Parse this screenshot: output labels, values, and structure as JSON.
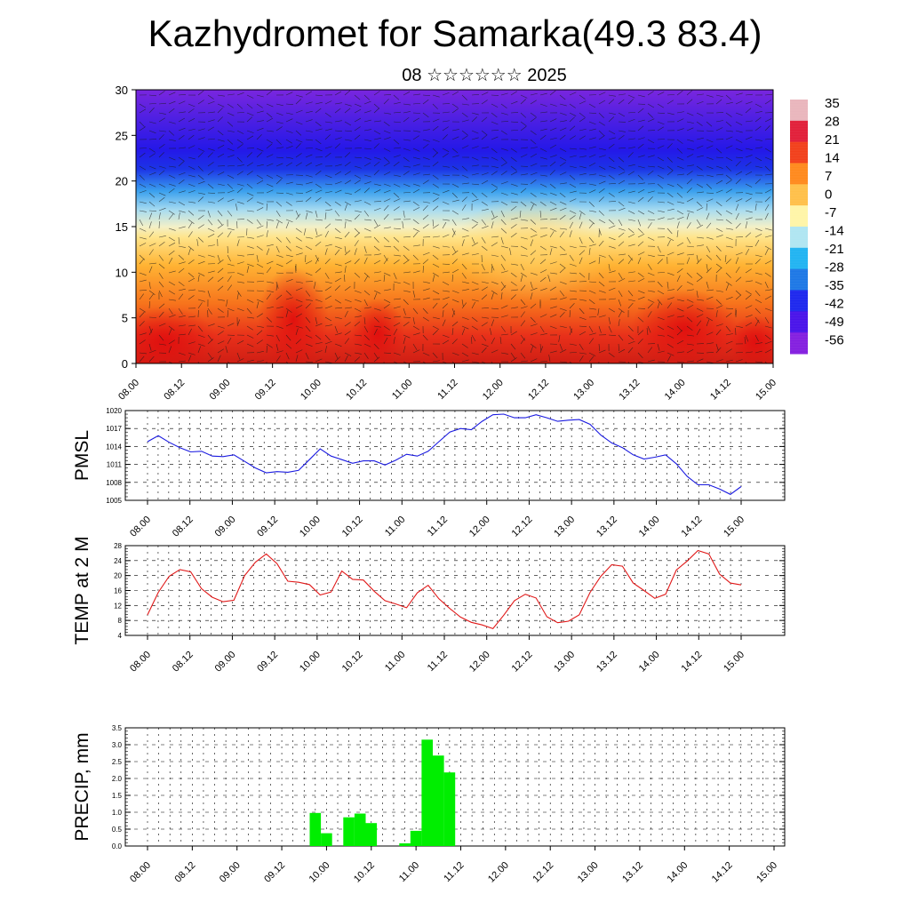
{
  "title": "Kazhydromet for Samarka(49.3 83.4)",
  "subtitle": "08 ☆☆☆☆☆☆ 2025",
  "x_tick_labels": [
    "08.00",
    "08.12",
    "09.00",
    "09.12",
    "10.00",
    "10.12",
    "11.00",
    "11.12",
    "12.00",
    "12.12",
    "13.00",
    "13.12",
    "14.00",
    "14.12",
    "15.00"
  ],
  "colorbar": {
    "labels": [
      "35",
      "28",
      "21",
      "14",
      "7",
      "0",
      "-7",
      "-14",
      "-21",
      "-28",
      "-35",
      "-42",
      "-49",
      "-56"
    ],
    "stops": [
      "#e9b6bd",
      "#e2203a",
      "#f2401c",
      "#ff8a1e",
      "#ffc04a",
      "#fff5a8",
      "#b0e6f2",
      "#22b4f2",
      "#1e78e6",
      "#1e28ee",
      "#4a14ea",
      "#8420e0"
    ]
  },
  "chart_data": [
    {
      "type": "heatmap",
      "ylim": [
        0,
        30
      ],
      "yticks": [
        0,
        5,
        10,
        15,
        20,
        25,
        30
      ],
      "zlim": [
        -56,
        35
      ],
      "description_colors": "temperature cross-section with wind barbs"
    },
    {
      "type": "line",
      "ylabel": "PMSL",
      "ylim": [
        1005,
        1020
      ],
      "yticks": [
        1005,
        1008,
        1011,
        1014,
        1017,
        1020
      ],
      "color": "#1a1ae0",
      "values": [
        1014.8,
        1015.8,
        1014.7,
        1013.8,
        1013.1,
        1013.2,
        1012.4,
        1012.3,
        1012.6,
        1011.5,
        1010.4,
        1009.6,
        1009.8,
        1009.7,
        1010.0,
        1011.8,
        1013.6,
        1012.4,
        1011.8,
        1011.2,
        1011.6,
        1011.6,
        1010.9,
        1011.7,
        1012.7,
        1012.4,
        1013.2,
        1014.8,
        1016.4,
        1017.0,
        1016.8,
        1018.2,
        1019.3,
        1019.4,
        1018.8,
        1018.8,
        1019.3,
        1018.8,
        1018.2,
        1018.4,
        1018.5,
        1017.7,
        1015.9,
        1014.6,
        1013.8,
        1012.6,
        1011.9,
        1012.2,
        1012.6,
        1011.1,
        1009.0,
        1007.6,
        1007.6,
        1006.9,
        1006.0,
        1007.3
      ]
    },
    {
      "type": "line",
      "ylabel": "TEMP at 2 M",
      "ylim": [
        4,
        28
      ],
      "yticks": [
        4,
        8,
        12,
        16,
        20,
        24,
        28
      ],
      "color": "#e01818",
      "values": [
        9.5,
        15.5,
        19.8,
        21.6,
        21.0,
        16.5,
        14.2,
        13.0,
        13.4,
        20.0,
        23.6,
        25.8,
        23.2,
        18.5,
        18.2,
        17.6,
        14.8,
        15.6,
        21.2,
        19.0,
        18.8,
        15.8,
        13.3,
        12.4,
        11.4,
        15.4,
        17.4,
        13.8,
        11.2,
        8.9,
        7.5,
        6.8,
        5.8,
        9.4,
        13.3,
        15.0,
        14.0,
        9.0,
        7.4,
        7.8,
        9.5,
        15.5,
        19.8,
        22.9,
        22.5,
        18.0,
        16.0,
        13.9,
        15.0,
        21.5,
        23.9,
        26.7,
        25.8,
        20.4,
        18.0,
        17.5
      ]
    },
    {
      "type": "bar",
      "ylabel": "PRECIP, mm",
      "ylim": [
        0,
        3.5
      ],
      "yticks": [
        "0.0",
        "0.5",
        "1.0",
        "1.5",
        "2.0",
        "2.5",
        "3.0",
        "3.5"
      ],
      "color": "#00ee00",
      "bars": [
        {
          "i": 15,
          "v": 0.98
        },
        {
          "i": 16,
          "v": 0.38
        },
        {
          "i": 18,
          "v": 0.85
        },
        {
          "i": 19,
          "v": 0.96
        },
        {
          "i": 20,
          "v": 0.68
        },
        {
          "i": 23,
          "v": 0.08
        },
        {
          "i": 24,
          "v": 0.45
        },
        {
          "i": 25,
          "v": 3.15
        },
        {
          "i": 26,
          "v": 2.68
        },
        {
          "i": 27,
          "v": 2.18
        }
      ]
    }
  ]
}
